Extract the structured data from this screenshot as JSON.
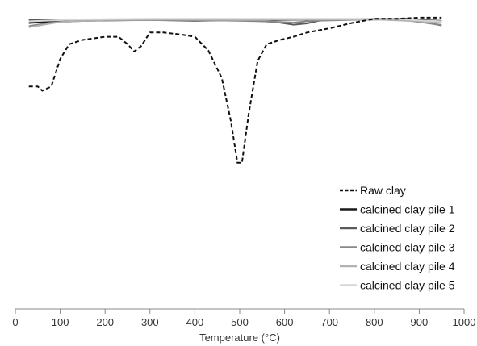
{
  "chart_data": {
    "type": "line",
    "xlabel": "Temperature (°C)",
    "xlim": [
      0,
      1000
    ],
    "x_ticks": [
      "0",
      "100",
      "200",
      "300",
      "400",
      "500",
      "600",
      "700",
      "800",
      "900",
      "1000"
    ],
    "ylim": [
      -0.78,
      0.02
    ],
    "y_axis_shown": false,
    "grid": false,
    "legend_position": "lower-right",
    "series": [
      {
        "name": "Raw clay",
        "color": "#111111",
        "dash": "dashed",
        "points": [
          [
            30,
            -0.32
          ],
          [
            50,
            -0.32
          ],
          [
            60,
            -0.34
          ],
          [
            80,
            -0.32
          ],
          [
            100,
            -0.19
          ],
          [
            120,
            -0.12
          ],
          [
            150,
            -0.1
          ],
          [
            200,
            -0.085
          ],
          [
            230,
            -0.085
          ],
          [
            250,
            -0.12
          ],
          [
            265,
            -0.155
          ],
          [
            280,
            -0.13
          ],
          [
            300,
            -0.065
          ],
          [
            330,
            -0.065
          ],
          [
            370,
            -0.075
          ],
          [
            400,
            -0.085
          ],
          [
            430,
            -0.15
          ],
          [
            460,
            -0.28
          ],
          [
            480,
            -0.48
          ],
          [
            495,
            -0.68
          ],
          [
            505,
            -0.68
          ],
          [
            520,
            -0.45
          ],
          [
            540,
            -0.2
          ],
          [
            560,
            -0.12
          ],
          [
            590,
            -0.1
          ],
          [
            620,
            -0.085
          ],
          [
            650,
            -0.065
          ],
          [
            700,
            -0.045
          ],
          [
            750,
            -0.02
          ],
          [
            800,
            0.0
          ],
          [
            850,
            0.0
          ],
          [
            900,
            0.005
          ],
          [
            950,
            0.005
          ]
        ]
      },
      {
        "name": "calcined clay pile 1",
        "color": "#1a1a1a",
        "dash": "solid",
        "points": [
          [
            30,
            -0.02
          ],
          [
            100,
            -0.012
          ],
          [
            200,
            -0.008
          ],
          [
            300,
            -0.005
          ],
          [
            400,
            -0.006
          ],
          [
            500,
            -0.004
          ],
          [
            550,
            -0.008
          ],
          [
            600,
            -0.006
          ],
          [
            700,
            -0.003
          ],
          [
            800,
            0.0
          ],
          [
            870,
            0.0
          ],
          [
            900,
            -0.005
          ],
          [
            950,
            -0.01
          ]
        ]
      },
      {
        "name": "calcined clay pile 2",
        "color": "#5a5a5a",
        "dash": "solid",
        "points": [
          [
            30,
            -0.005
          ],
          [
            100,
            -0.004
          ],
          [
            200,
            -0.004
          ],
          [
            300,
            -0.006
          ],
          [
            400,
            -0.01
          ],
          [
            500,
            -0.006
          ],
          [
            580,
            -0.015
          ],
          [
            620,
            -0.028
          ],
          [
            650,
            -0.022
          ],
          [
            680,
            -0.008
          ],
          [
            750,
            -0.004
          ],
          [
            850,
            0.0
          ],
          [
            900,
            -0.01
          ],
          [
            950,
            -0.032
          ]
        ]
      },
      {
        "name": "calcined clay pile 3",
        "color": "#888888",
        "dash": "solid",
        "points": [
          [
            30,
            -0.035
          ],
          [
            80,
            -0.018
          ],
          [
            150,
            -0.01
          ],
          [
            300,
            -0.006
          ],
          [
            450,
            -0.008
          ],
          [
            550,
            -0.012
          ],
          [
            620,
            -0.018
          ],
          [
            660,
            -0.01
          ],
          [
            750,
            -0.005
          ],
          [
            850,
            -0.003
          ],
          [
            900,
            -0.015
          ],
          [
            950,
            -0.03
          ]
        ]
      },
      {
        "name": "calcined clay pile 4",
        "color": "#b2b2b2",
        "dash": "solid",
        "points": [
          [
            30,
            -0.04
          ],
          [
            100,
            -0.015
          ],
          [
            200,
            -0.006
          ],
          [
            350,
            -0.004
          ],
          [
            500,
            -0.006
          ],
          [
            650,
            -0.004
          ],
          [
            800,
            -0.003
          ],
          [
            900,
            -0.012
          ],
          [
            950,
            -0.02
          ]
        ]
      },
      {
        "name": "calcined clay pile 5",
        "color": "#d6d6d6",
        "dash": "solid",
        "points": [
          [
            30,
            -0.012
          ],
          [
            150,
            -0.003
          ],
          [
            300,
            0.0
          ],
          [
            500,
            0.0
          ],
          [
            700,
            0.0
          ],
          [
            850,
            0.0
          ],
          [
            900,
            -0.008
          ],
          [
            950,
            -0.012
          ]
        ]
      }
    ]
  }
}
